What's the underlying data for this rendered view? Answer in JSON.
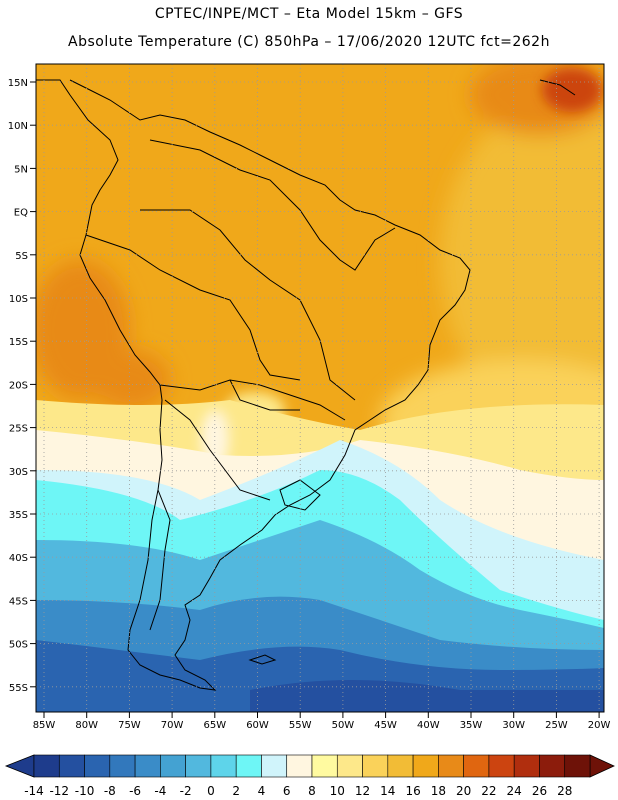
{
  "header": {
    "line1": "CPTEC/INPE/MCT  –   Eta Model 15km  –  GFS",
    "line2": "Absolute Temperature (C) 850hPa  – 17/06/2020 12UTC fct=262h"
  },
  "axes": {
    "lat_labels": [
      "15N",
      "10N",
      "5N",
      "EQ",
      "5S",
      "10S",
      "15S",
      "20S",
      "25S",
      "30S",
      "35S",
      "40S",
      "45S",
      "50S",
      "55S"
    ],
    "lon_labels": [
      "85W",
      "80W",
      "75W",
      "70W",
      "65W",
      "60W",
      "55W",
      "50W",
      "45W",
      "40W",
      "35W",
      "30W",
      "25W",
      "20W"
    ]
  },
  "colorbar": {
    "labels": [
      "-14",
      "-12",
      "-10",
      "-8",
      "-6",
      "-4",
      "-2",
      "0",
      "2",
      "4",
      "6",
      "8",
      "10",
      "12",
      "14",
      "16",
      "18",
      "20",
      "22",
      "24",
      "26",
      "28"
    ],
    "colors": [
      "#1e3c8c",
      "#2450a0",
      "#2a64b0",
      "#3278bc",
      "#3a8cc8",
      "#44a2d2",
      "#52b8de",
      "#5ed4ea",
      "#6ef6f6",
      "#d0f4fb",
      "#fff6e0",
      "#fffaa0",
      "#fde88a",
      "#fad25a",
      "#f2bc36",
      "#f0a81a",
      "#e88a18",
      "#e06610",
      "#cc4410",
      "#b02e0e",
      "#8c1c0c",
      "#6e1208"
    ]
  }
}
